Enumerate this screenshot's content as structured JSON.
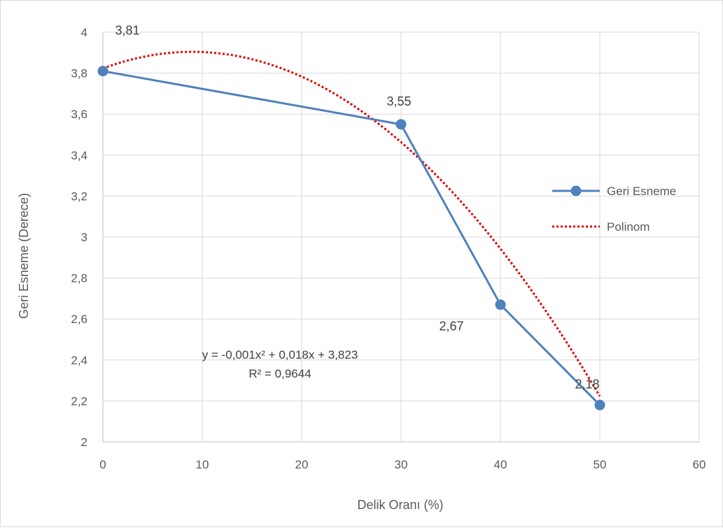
{
  "chart_data": {
    "type": "line",
    "xlabel": "Delik Oranı (%)",
    "ylabel": "Geri Esneme (Derece)",
    "xlim": [
      0,
      60
    ],
    "ylim": [
      2,
      4
    ],
    "x_ticks": [
      0,
      10,
      20,
      30,
      40,
      50,
      60
    ],
    "y_ticks": [
      2,
      2.2,
      2.4,
      2.6,
      2.8,
      3,
      3.2,
      3.4,
      3.6,
      3.8,
      4
    ],
    "x_tick_labels": [
      "0",
      "10",
      "20",
      "30",
      "40",
      "50",
      "60"
    ],
    "y_tick_labels": [
      "2",
      "2,2",
      "2,4",
      "2,6",
      "2,8",
      "3",
      "3,2",
      "3,4",
      "3,6",
      "3,8",
      "4"
    ],
    "grid": true,
    "legend_position": "right",
    "series": [
      {
        "name": "Geri Esneme",
        "x": [
          0,
          30,
          40,
          50
        ],
        "y": [
          3.81,
          3.55,
          2.67,
          2.18
        ],
        "data_labels": [
          "3,81",
          "3,55",
          "2,67",
          "2,18"
        ],
        "color": "#4f81bd",
        "marker": "circle"
      },
      {
        "name": "Polinom",
        "kind": "trendline",
        "coefficients": [
          -0.001,
          0.018,
          3.823
        ],
        "x_range": [
          0,
          50
        ],
        "color": "#e00000",
        "style": "dotted"
      }
    ],
    "annotations": {
      "equation": "y = -0,001x² + 0,018x + 3,823",
      "r_squared": "R² = 0,9644"
    }
  }
}
